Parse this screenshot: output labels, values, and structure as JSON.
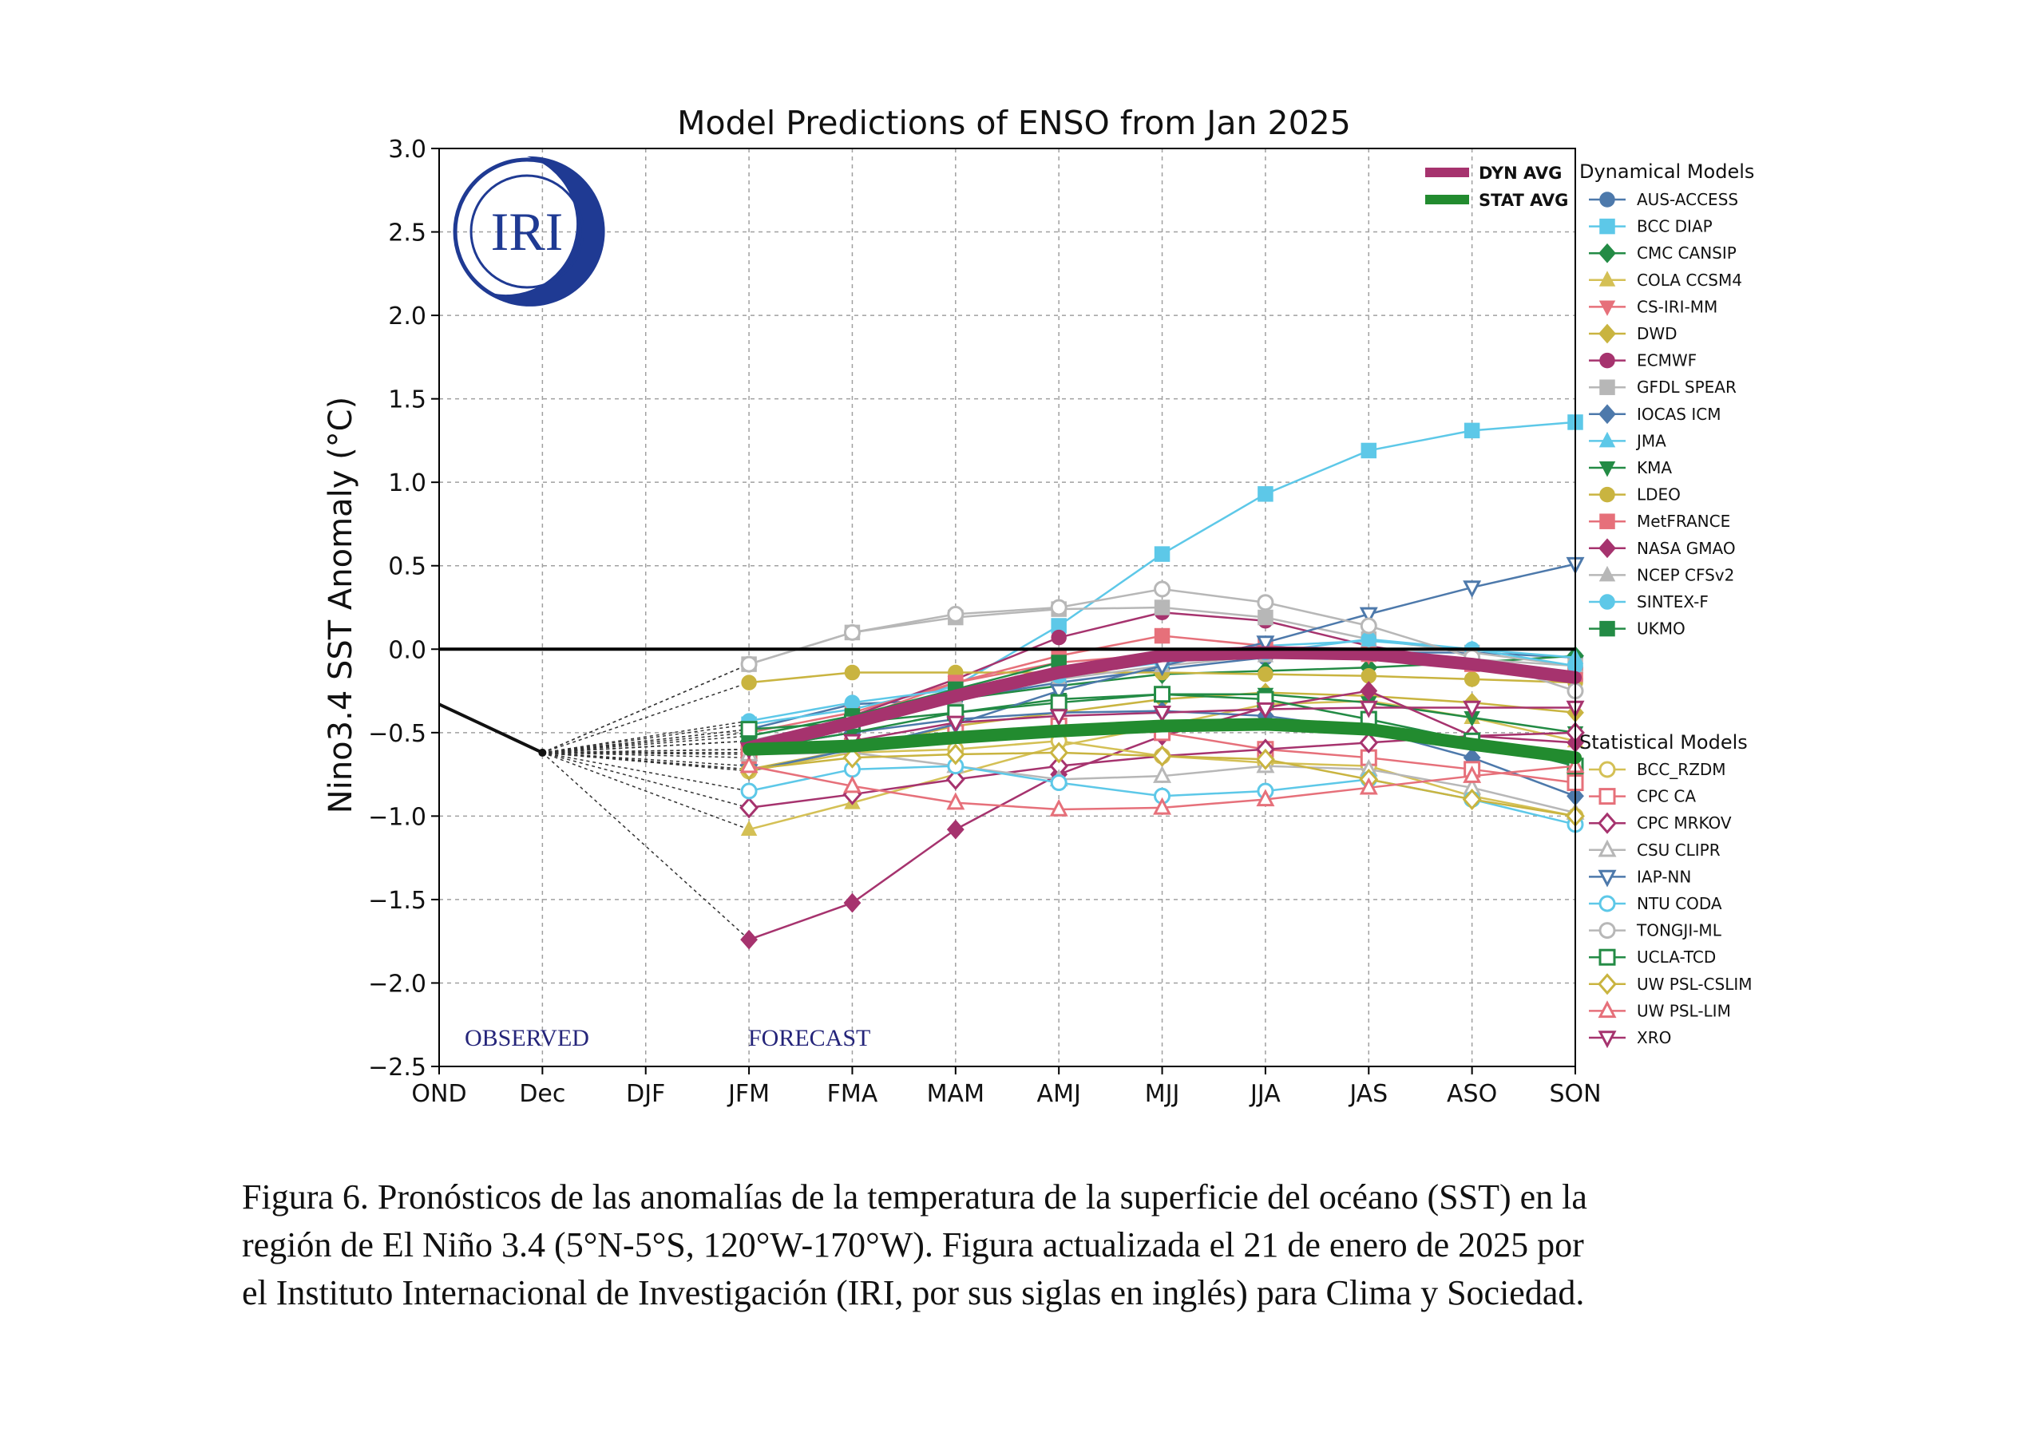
{
  "chart_data": {
    "type": "line",
    "title": "Model Predictions of ENSO from Jan 2025",
    "ylabel": "Nino3.4 SST Anomaly (°C)",
    "xlabel": "",
    "categories": [
      "OND",
      "Dec",
      "DJF",
      "JFM",
      "FMA",
      "MAM",
      "AMJ",
      "MJJ",
      "JJA",
      "JAS",
      "ASO",
      "SON"
    ],
    "ylim": [
      -2.5,
      3.0
    ],
    "yticks": [
      "3.0",
      "2.5",
      "2.0",
      "1.5",
      "1.0",
      "0.5",
      "0.0",
      "−0.5",
      "−1.0",
      "−1.5",
      "−2.0",
      "−2.5"
    ],
    "grid": true,
    "annotations": {
      "observed": "OBSERVED",
      "forecast": "FORECAST"
    },
    "logo": "IRI",
    "observed_series": {
      "x": [
        "OND",
        "Dec"
      ],
      "values": [
        -0.33,
        -0.62
      ]
    },
    "legend_headers": {
      "dynamical": "Dynamical Models",
      "statistical": "Statistical Models"
    },
    "avg_series": [
      {
        "name": "DYN AVG",
        "color": "#a6336e",
        "values": [
          -0.59,
          -0.44,
          -0.28,
          -0.14,
          -0.04,
          -0.02,
          -0.03,
          -0.09,
          -0.17
        ]
      },
      {
        "name": "STAT AVG",
        "color": "#228b2f",
        "values": [
          -0.6,
          -0.58,
          -0.53,
          -0.49,
          -0.46,
          -0.45,
          -0.48,
          -0.57,
          -0.65
        ]
      }
    ],
    "dynamical_series": [
      {
        "name": "AUS-ACCESS",
        "color": "#4d79ab",
        "marker": "o",
        "values": [
          -0.48,
          -0.33,
          -0.3,
          -0.2,
          -0.12,
          -0.05,
          -0.02,
          -0.02,
          -0.05
        ]
      },
      {
        "name": "BCC DIAP",
        "color": "#5dc8e8",
        "marker": "s",
        "values": [
          -0.45,
          -0.36,
          -0.22,
          0.14,
          0.57,
          0.93,
          1.19,
          1.31,
          1.36
        ]
      },
      {
        "name": "CMC CANSIP",
        "color": "#238b45",
        "marker": "D",
        "values": [
          -0.55,
          -0.44,
          -0.3,
          -0.22,
          -0.15,
          -0.13,
          -0.11,
          -0.08,
          -0.04
        ]
      },
      {
        "name": "COLA CCSM4",
        "color": "#d4c055",
        "marker": "^",
        "values": [
          -1.08,
          -0.92,
          -0.75,
          -0.58,
          -0.46,
          -0.33,
          -0.31,
          -0.41,
          -0.55
        ]
      },
      {
        "name": "CS-IRI-MM",
        "color": "#e6707a",
        "marker": "v",
        "values": [
          -0.5,
          -0.38,
          -0.2,
          -0.08,
          -0.03,
          -0.02,
          -0.04,
          -0.1,
          -0.15
        ]
      },
      {
        "name": "DWD",
        "color": "#c9b440",
        "marker": "D",
        "values": [
          -0.72,
          -0.6,
          -0.46,
          -0.38,
          -0.3,
          -0.26,
          -0.28,
          -0.32,
          -0.38
        ]
      },
      {
        "name": "ECMWF",
        "color": "#a6336e",
        "marker": "o",
        "values": [
          -0.62,
          -0.4,
          -0.18,
          0.07,
          0.22,
          0.17,
          0.02,
          -0.08,
          -0.18
        ]
      },
      {
        "name": "GFDL SPEAR",
        "color": "#b7b7b7",
        "marker": "s",
        "values": [
          -0.09,
          0.1,
          0.19,
          0.24,
          0.25,
          0.19,
          0.06,
          -0.02,
          -0.1
        ]
      },
      {
        "name": "IOCAS ICM",
        "color": "#4d79ab",
        "marker": "D",
        "values": [
          -0.6,
          -0.5,
          -0.42,
          -0.38,
          -0.37,
          -0.4,
          -0.48,
          -0.65,
          -0.88
        ]
      },
      {
        "name": "JMA",
        "color": "#5dc8e8",
        "marker": "^",
        "values": [
          -0.55,
          -0.45,
          -0.3,
          -0.16,
          -0.05,
          0.02,
          0.05,
          0.0,
          -0.05
        ]
      },
      {
        "name": "KMA",
        "color": "#238b45",
        "marker": "v",
        "values": [
          -0.6,
          -0.5,
          -0.38,
          -0.3,
          -0.27,
          -0.27,
          -0.32,
          -0.41,
          -0.5
        ]
      },
      {
        "name": "LDEO",
        "color": "#c9b440",
        "marker": "o",
        "values": [
          -0.2,
          -0.14,
          -0.14,
          -0.14,
          -0.14,
          -0.15,
          -0.16,
          -0.18,
          -0.2
        ]
      },
      {
        "name": "MetFRANCE",
        "color": "#e6707a",
        "marker": "s",
        "values": [
          -0.65,
          -0.42,
          -0.2,
          -0.04,
          0.08,
          0.02,
          -0.03,
          -0.09,
          -0.15
        ]
      },
      {
        "name": "NASA GMAO",
        "color": "#a6336e",
        "marker": "D",
        "values": [
          -1.74,
          -1.52,
          -1.08,
          -0.75,
          -0.52,
          -0.35,
          -0.25,
          -0.52,
          -0.56
        ]
      },
      {
        "name": "NCEP CFSv2",
        "color": "#b7b7b7",
        "marker": "^",
        "values": [
          -0.55,
          -0.42,
          -0.3,
          -0.18,
          -0.1,
          -0.04,
          -0.03,
          -0.06,
          -0.1
        ]
      },
      {
        "name": "SINTEX-F",
        "color": "#5dc8e8",
        "marker": "o",
        "values": [
          -0.43,
          -0.32,
          -0.24,
          -0.16,
          -0.08,
          -0.02,
          0.06,
          0.0,
          -0.1
        ]
      },
      {
        "name": "UKMO",
        "color": "#238b45",
        "marker": "s",
        "values": [
          -0.52,
          -0.4,
          -0.24,
          -0.08,
          null,
          null,
          null,
          null,
          null
        ]
      }
    ],
    "statistical_series": [
      {
        "name": "BCC_RZDM",
        "color": "#d4c055",
        "marker": "o",
        "values": [
          -0.73,
          -0.62,
          -0.6,
          -0.55,
          -0.64,
          -0.68,
          -0.7,
          -0.88,
          -1.0
        ]
      },
      {
        "name": "CPC CA",
        "color": "#e6707a",
        "marker": "s",
        "values": [
          -0.62,
          -0.58,
          -0.5,
          -0.46,
          -0.5,
          -0.6,
          -0.65,
          -0.72,
          -0.8
        ]
      },
      {
        "name": "CPC MRKOV",
        "color": "#a6336e",
        "marker": "D",
        "values": [
          -0.95,
          -0.87,
          -0.78,
          -0.7,
          -0.64,
          -0.6,
          -0.56,
          -0.52,
          -0.5
        ]
      },
      {
        "name": "CSU CLIPR",
        "color": "#b7b7b7",
        "marker": "^",
        "values": [
          -0.63,
          -0.62,
          -0.7,
          -0.78,
          -0.76,
          -0.7,
          -0.72,
          -0.83,
          -0.98
        ]
      },
      {
        "name": "IAP-NN",
        "color": "#4d79ab",
        "marker": "v",
        "values": [
          -0.73,
          -0.6,
          -0.45,
          -0.25,
          -0.1,
          0.04,
          0.21,
          0.37,
          0.51
        ]
      },
      {
        "name": "NTU CODA",
        "color": "#5dc8e8",
        "marker": "o",
        "values": [
          -0.85,
          -0.72,
          -0.7,
          -0.8,
          -0.88,
          -0.85,
          -0.78,
          -0.9,
          -1.05
        ]
      },
      {
        "name": "TONGJI-ML",
        "color": "#b7b7b7",
        "marker": "o",
        "values": [
          -0.09,
          0.1,
          0.21,
          0.25,
          0.36,
          0.28,
          0.14,
          -0.05,
          -0.25
        ]
      },
      {
        "name": "UCLA-TCD",
        "color": "#238b45",
        "marker": "s",
        "values": [
          -0.48,
          -0.44,
          -0.38,
          -0.32,
          -0.27,
          -0.3,
          -0.42,
          -0.55,
          -0.7
        ]
      },
      {
        "name": "UW PSL-CSLIM",
        "color": "#c9b440",
        "marker": "D",
        "values": [
          -0.72,
          -0.65,
          -0.63,
          -0.62,
          -0.64,
          -0.66,
          -0.78,
          -0.9,
          -1.0
        ]
      },
      {
        "name": "UW PSL-LIM",
        "color": "#e6707a",
        "marker": "^",
        "values": [
          -0.7,
          -0.82,
          -0.92,
          -0.96,
          -0.95,
          -0.9,
          -0.83,
          -0.76,
          -0.7
        ]
      },
      {
        "name": "XRO",
        "color": "#a6336e",
        "marker": "v",
        "values": [
          -0.6,
          -0.55,
          -0.44,
          -0.4,
          -0.38,
          -0.36,
          -0.35,
          -0.35,
          -0.35
        ]
      }
    ]
  },
  "caption": {
    "line1": "Figura 6. Pronósticos de las anomalías de la temperatura de la superficie del océano (SST) en la",
    "line2": "región de El Niño 3.4 (5°N-5°S, 120°W-170°W). Figura actualizada el 21 de enero de 2025 por",
    "line3": "el Instituto Internacional de Investigación (IRI, por sus siglas en inglés) para Clima y Sociedad."
  }
}
